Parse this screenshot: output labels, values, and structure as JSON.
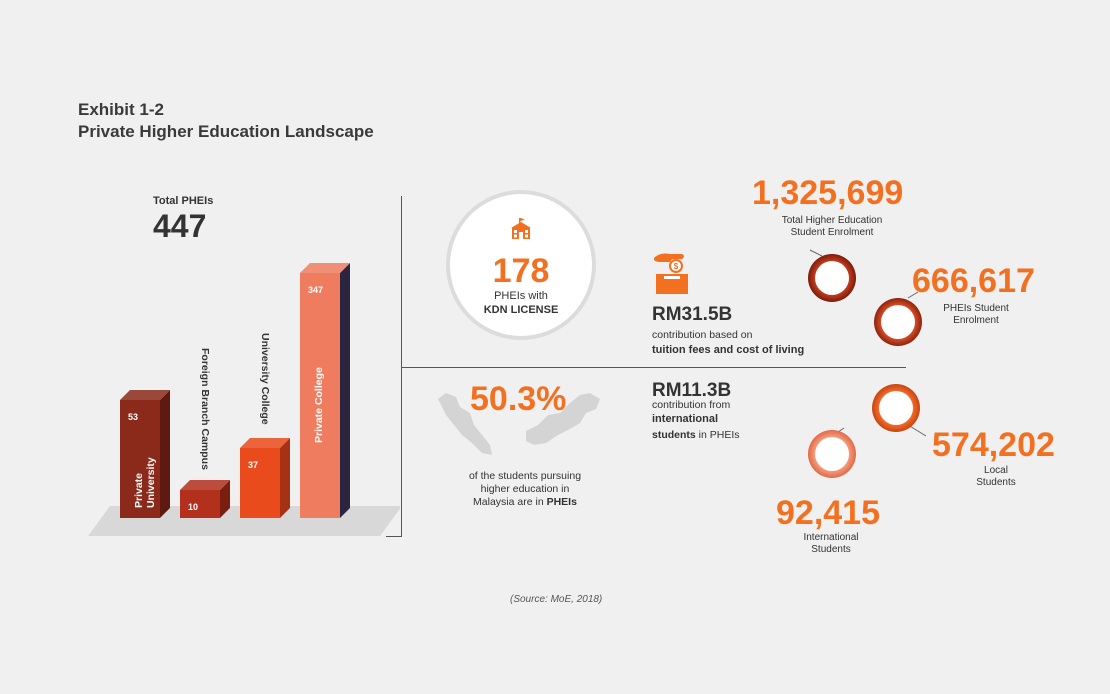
{
  "header": {
    "exhibit": "Exhibit 1-2",
    "title": "Private Higher Education Landscape"
  },
  "total": {
    "label": "Total PHEIs",
    "value": "447"
  },
  "chart_data": {
    "type": "bar",
    "categories": [
      "Private University",
      "Foreign Branch Campus",
      "University College",
      "Private College"
    ],
    "values": [
      53,
      10,
      37,
      347
    ],
    "colors": [
      "#8b2a1a",
      "#b3301c",
      "#ea4b1c",
      "#f07c60"
    ],
    "side_colors": [
      "#5e1a10",
      "#7a1e12",
      "#a53214",
      "#2b2540"
    ],
    "ylim": [
      0,
      347
    ],
    "title": "",
    "xlabel": "",
    "ylabel": ""
  },
  "kdn": {
    "value": "178",
    "line1": "PHEIs with",
    "line2": "KDN LICENSE",
    "icon": "school-building-icon"
  },
  "share": {
    "value": "50.3%",
    "line1": "of the students pursuing",
    "line2": "higher education in",
    "line3_prefix": "Malaysia are in ",
    "line3_bold": "PHEIs",
    "map_icon": "malaysia-map-icon"
  },
  "contribution1": {
    "value": "RM31.5B",
    "line1": "contribution based on",
    "line2": "tuition fees and cost of living",
    "icon": "hand-coin-box-icon"
  },
  "contribution2": {
    "value": "RM11.3B",
    "line1": "contribution from",
    "line2": "international",
    "line3_bold": "students",
    "line3_rest": " in PHEIs"
  },
  "stats": {
    "total_enrolment": {
      "value": "1,325,699",
      "line1": "Total Higher Education",
      "line2": "Student Enrolment"
    },
    "phei_enrolment": {
      "value": "666,617",
      "line1": "PHEIs Student",
      "line2": "Enrolment"
    },
    "local": {
      "value": "574,202",
      "line1": "Local",
      "line2": "Students"
    },
    "international": {
      "value": "92,415",
      "line1": "International",
      "line2": "Students"
    }
  },
  "source": "(Source: MoE, 2018)",
  "colors": {
    "accent": "#f37021",
    "text": "#333333",
    "background": "#f0f0f0"
  }
}
